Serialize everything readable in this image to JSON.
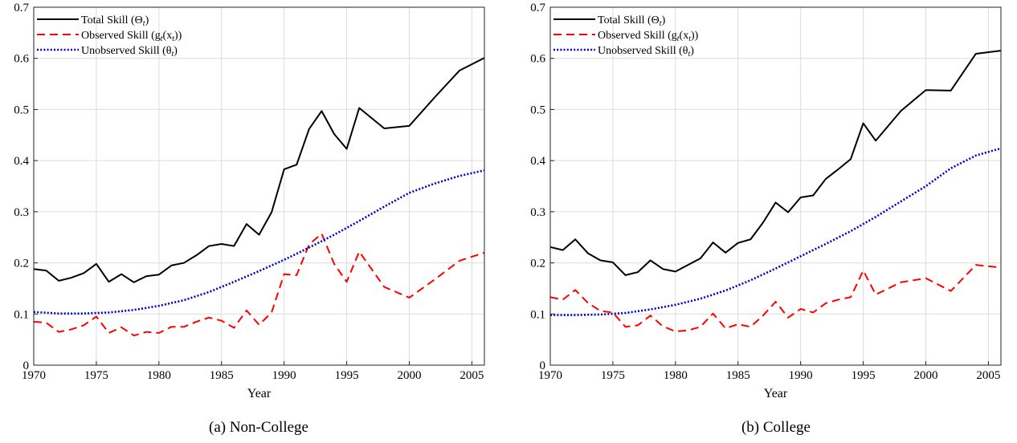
{
  "chart_data": [
    {
      "type": "line",
      "caption": "(a) Non-College",
      "xlabel": "Year",
      "ylabel": "",
      "xlim": [
        1970,
        2006
      ],
      "ylim": [
        0,
        0.7
      ],
      "xticks": [
        1970,
        1975,
        1980,
        1985,
        1990,
        1995,
        2000,
        2005
      ],
      "yticks": [
        0,
        0.1,
        0.2,
        0.3,
        0.4,
        0.5,
        0.6,
        0.7
      ],
      "ytick_labels": [
        "0",
        "0.1",
        "0.2",
        "0.3",
        "0.4",
        "0.5",
        "0.6",
        "0.7"
      ],
      "grid": true,
      "legend_position": "top-left",
      "series": [
        {
          "name": "Total Skill (Θ",
          "name_sub": "t",
          "name_tail": ")",
          "color": "#000000",
          "style": "solid",
          "x": [
            1970,
            1971,
            1972,
            1973,
            1974,
            1975,
            1976,
            1977,
            1978,
            1979,
            1980,
            1981,
            1982,
            1983,
            1984,
            1985,
            1986,
            1987,
            1988,
            1989,
            1990,
            1991,
            1992,
            1993,
            1994,
            1995,
            1996,
            1998,
            2000,
            2002,
            2004,
            2006
          ],
          "y": [
            0.188,
            0.185,
            0.165,
            0.171,
            0.18,
            0.198,
            0.163,
            0.178,
            0.162,
            0.174,
            0.177,
            0.195,
            0.2,
            0.215,
            0.233,
            0.237,
            0.233,
            0.276,
            0.255,
            0.299,
            0.383,
            0.392,
            0.462,
            0.497,
            0.452,
            0.423,
            0.503,
            0.463,
            0.468,
            0.523,
            0.576,
            0.601
          ]
        },
        {
          "name": "Observed Skill (g",
          "name_sub": "t",
          "name_tail": "(x",
          "name_sub2": "t",
          "name_tail2": "))",
          "color": "#ff0000",
          "style": "dashed",
          "x": [
            1970,
            1971,
            1972,
            1973,
            1974,
            1975,
            1976,
            1977,
            1978,
            1979,
            1980,
            1981,
            1982,
            1983,
            1984,
            1985,
            1986,
            1987,
            1988,
            1989,
            1990,
            1991,
            1992,
            1993,
            1994,
            1995,
            1996,
            1998,
            2000,
            2002,
            2004,
            2006
          ],
          "y": [
            0.085,
            0.083,
            0.065,
            0.07,
            0.078,
            0.095,
            0.063,
            0.074,
            0.058,
            0.065,
            0.063,
            0.075,
            0.075,
            0.085,
            0.093,
            0.087,
            0.073,
            0.107,
            0.079,
            0.103,
            0.178,
            0.176,
            0.236,
            0.257,
            0.198,
            0.163,
            0.222,
            0.153,
            0.132,
            0.167,
            0.204,
            0.22
          ]
        },
        {
          "name": "Unobserved Skill (θ",
          "name_sub": "t",
          "name_tail": ")",
          "color": "#0000cc",
          "style": "dotted",
          "x": [
            1970,
            1972,
            1974,
            1976,
            1978,
            1980,
            1982,
            1984,
            1986,
            1988,
            1990,
            1992,
            1994,
            1996,
            1998,
            2000,
            2002,
            2004,
            2006
          ],
          "y": [
            0.104,
            0.101,
            0.101,
            0.103,
            0.108,
            0.116,
            0.127,
            0.143,
            0.163,
            0.184,
            0.206,
            0.23,
            0.255,
            0.282,
            0.31,
            0.337,
            0.355,
            0.37,
            0.381
          ]
        }
      ]
    },
    {
      "type": "line",
      "caption": "(b) College",
      "xlabel": "Year",
      "ylabel": "",
      "xlim": [
        1970,
        2006
      ],
      "ylim": [
        0,
        0.7
      ],
      "xticks": [
        1970,
        1975,
        1980,
        1985,
        1990,
        1995,
        2000,
        2005
      ],
      "yticks": [
        0,
        0.1,
        0.2,
        0.3,
        0.4,
        0.5,
        0.6,
        0.7
      ],
      "ytick_labels": [
        "0",
        "0.1",
        "0.2",
        "0.3",
        "0.4",
        "0.5",
        "0.6",
        "0.7"
      ],
      "grid": true,
      "legend_position": "top-left",
      "series": [
        {
          "name": "Total Skill (Θ",
          "name_sub": "t",
          "name_tail": ")",
          "color": "#000000",
          "style": "solid",
          "x": [
            1970,
            1971,
            1972,
            1973,
            1974,
            1975,
            1976,
            1977,
            1978,
            1979,
            1980,
            1981,
            1982,
            1983,
            1984,
            1985,
            1986,
            1987,
            1988,
            1989,
            1990,
            1991,
            1992,
            1993,
            1994,
            1995,
            1996,
            1998,
            2000,
            2002,
            2004,
            2006
          ],
          "y": [
            0.231,
            0.225,
            0.246,
            0.219,
            0.205,
            0.201,
            0.176,
            0.182,
            0.205,
            0.188,
            0.183,
            0.196,
            0.209,
            0.24,
            0.22,
            0.239,
            0.246,
            0.279,
            0.318,
            0.299,
            0.328,
            0.332,
            0.364,
            0.383,
            0.403,
            0.473,
            0.439,
            0.497,
            0.538,
            0.537,
            0.609,
            0.615
          ]
        },
        {
          "name": "Observed Skill (g",
          "name_sub": "t",
          "name_tail": "(x",
          "name_sub2": "t",
          "name_tail2": "))",
          "color": "#ff0000",
          "style": "dashed",
          "x": [
            1970,
            1971,
            1972,
            1973,
            1974,
            1975,
            1976,
            1977,
            1978,
            1979,
            1980,
            1981,
            1982,
            1983,
            1984,
            1985,
            1986,
            1987,
            1988,
            1989,
            1990,
            1991,
            1992,
            1993,
            1994,
            1995,
            1996,
            1998,
            2000,
            2002,
            2004,
            2006
          ],
          "y": [
            0.133,
            0.128,
            0.147,
            0.122,
            0.106,
            0.103,
            0.075,
            0.078,
            0.097,
            0.076,
            0.066,
            0.068,
            0.075,
            0.101,
            0.072,
            0.08,
            0.075,
            0.097,
            0.124,
            0.093,
            0.11,
            0.103,
            0.121,
            0.128,
            0.133,
            0.185,
            0.138,
            0.162,
            0.17,
            0.145,
            0.196,
            0.191
          ]
        },
        {
          "name": "Unobserved Skill (θ",
          "name_sub": "t",
          "name_tail": ")",
          "color": "#0000cc",
          "style": "dotted",
          "x": [
            1970,
            1972,
            1974,
            1976,
            1978,
            1980,
            1982,
            1984,
            1986,
            1988,
            1990,
            1992,
            1994,
            1996,
            1998,
            2000,
            2002,
            2004,
            2006
          ],
          "y": [
            0.098,
            0.098,
            0.099,
            0.102,
            0.109,
            0.118,
            0.13,
            0.146,
            0.166,
            0.189,
            0.213,
            0.237,
            0.262,
            0.29,
            0.32,
            0.35,
            0.385,
            0.41,
            0.424
          ]
        }
      ]
    }
  ]
}
